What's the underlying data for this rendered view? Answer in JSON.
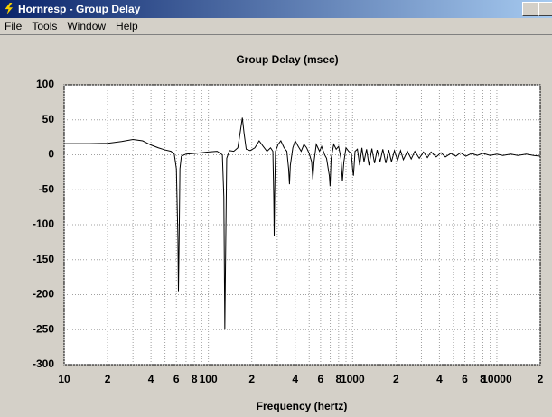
{
  "window": {
    "title": "Hornresp - Group Delay",
    "menu": [
      "File",
      "Tools",
      "Window",
      "Help"
    ]
  },
  "chart_data": {
    "type": "line",
    "title": "Group Delay (msec)",
    "x_label": "Frequency (hertz)",
    "x_scale": "log",
    "grid": true,
    "color": "#000000",
    "xlim": [
      10,
      20000
    ],
    "ylim": [
      -300,
      100
    ],
    "xticks": [
      10,
      {
        "value": 20,
        "label": "2"
      },
      {
        "value": 40,
        "label": "4"
      },
      {
        "value": 60,
        "label": "6"
      },
      {
        "value": 80,
        "label": "8"
      },
      100,
      {
        "value": 200,
        "label": "2"
      },
      {
        "value": 400,
        "label": "4"
      },
      {
        "value": 600,
        "label": "6"
      },
      {
        "value": 800,
        "label": "8"
      },
      1000,
      {
        "value": 2000,
        "label": "2"
      },
      {
        "value": 4000,
        "label": "4"
      },
      {
        "value": 6000,
        "label": "6"
      },
      {
        "value": 8000,
        "label": "8"
      },
      10000,
      {
        "value": 20000,
        "label": "2"
      }
    ],
    "xminorticks": [
      30,
      50,
      70,
      90,
      300,
      500,
      700,
      900,
      3000,
      5000,
      7000,
      9000
    ],
    "yticks": [
      100,
      50,
      0,
      -50,
      -100,
      -150,
      -200,
      -250,
      -300
    ],
    "x": [
      10,
      15,
      20,
      25,
      30,
      35,
      40,
      45,
      50,
      55,
      58,
      60,
      61.5,
      62,
      62.7,
      63.5,
      65,
      70,
      80,
      100,
      115,
      125,
      128,
      130,
      132,
      134,
      140,
      150,
      160,
      167,
      172,
      177,
      183,
      195,
      210,
      225,
      240,
      255,
      270,
      280,
      284,
      286,
      288,
      292,
      305,
      318,
      335,
      350,
      360,
      365,
      370,
      385,
      400,
      420,
      440,
      460,
      480,
      500,
      520,
      530,
      540,
      560,
      590,
      610,
      640,
      660,
      690,
      698,
      710,
      740,
      770,
      800,
      830,
      850,
      870,
      900,
      940,
      980,
      1000,
      1014,
      1040,
      1080,
      1120,
      1160,
      1200,
      1250,
      1300,
      1360,
      1420,
      1480,
      1550,
      1620,
      1700,
      1780,
      1860,
      1950,
      2050,
      2150,
      2250,
      2400,
      2550,
      2700,
      2900,
      3100,
      3300,
      3500,
      3800,
      4100,
      4400,
      4800,
      5200,
      5600,
      6100,
      6700,
      7300,
      8000,
      9000,
      10000,
      11000,
      12500,
      14000,
      16000,
      18000,
      20000
    ],
    "values": [
      16,
      16,
      16.5,
      19,
      22,
      20,
      14,
      10,
      7,
      5,
      1,
      -20,
      -120,
      -195,
      -120,
      -20,
      -2,
      1,
      2,
      4,
      5,
      0,
      -60,
      -250,
      -120,
      -5,
      6,
      5,
      10,
      35,
      53,
      30,
      8,
      6,
      10,
      20,
      12,
      5,
      10,
      5,
      -60,
      -116,
      -60,
      5,
      15,
      20,
      10,
      5,
      -20,
      -42,
      -15,
      10,
      20,
      12,
      5,
      15,
      10,
      2,
      -10,
      -35,
      -10,
      15,
      5,
      12,
      0,
      -5,
      -30,
      -45,
      -5,
      15,
      8,
      12,
      -5,
      -38,
      -10,
      10,
      5,
      2,
      -20,
      -30,
      5,
      8,
      -15,
      10,
      -10,
      8,
      -15,
      9,
      -12,
      7,
      -10,
      8,
      -12,
      7,
      -10,
      6,
      -8,
      6,
      -7,
      5,
      -6,
      5,
      -5,
      4,
      -4,
      4,
      -3,
      3,
      -3,
      2,
      -2,
      3,
      -2,
      2,
      -1,
      2,
      -1,
      1,
      -1,
      1,
      -1,
      1,
      -1,
      -2
    ]
  }
}
